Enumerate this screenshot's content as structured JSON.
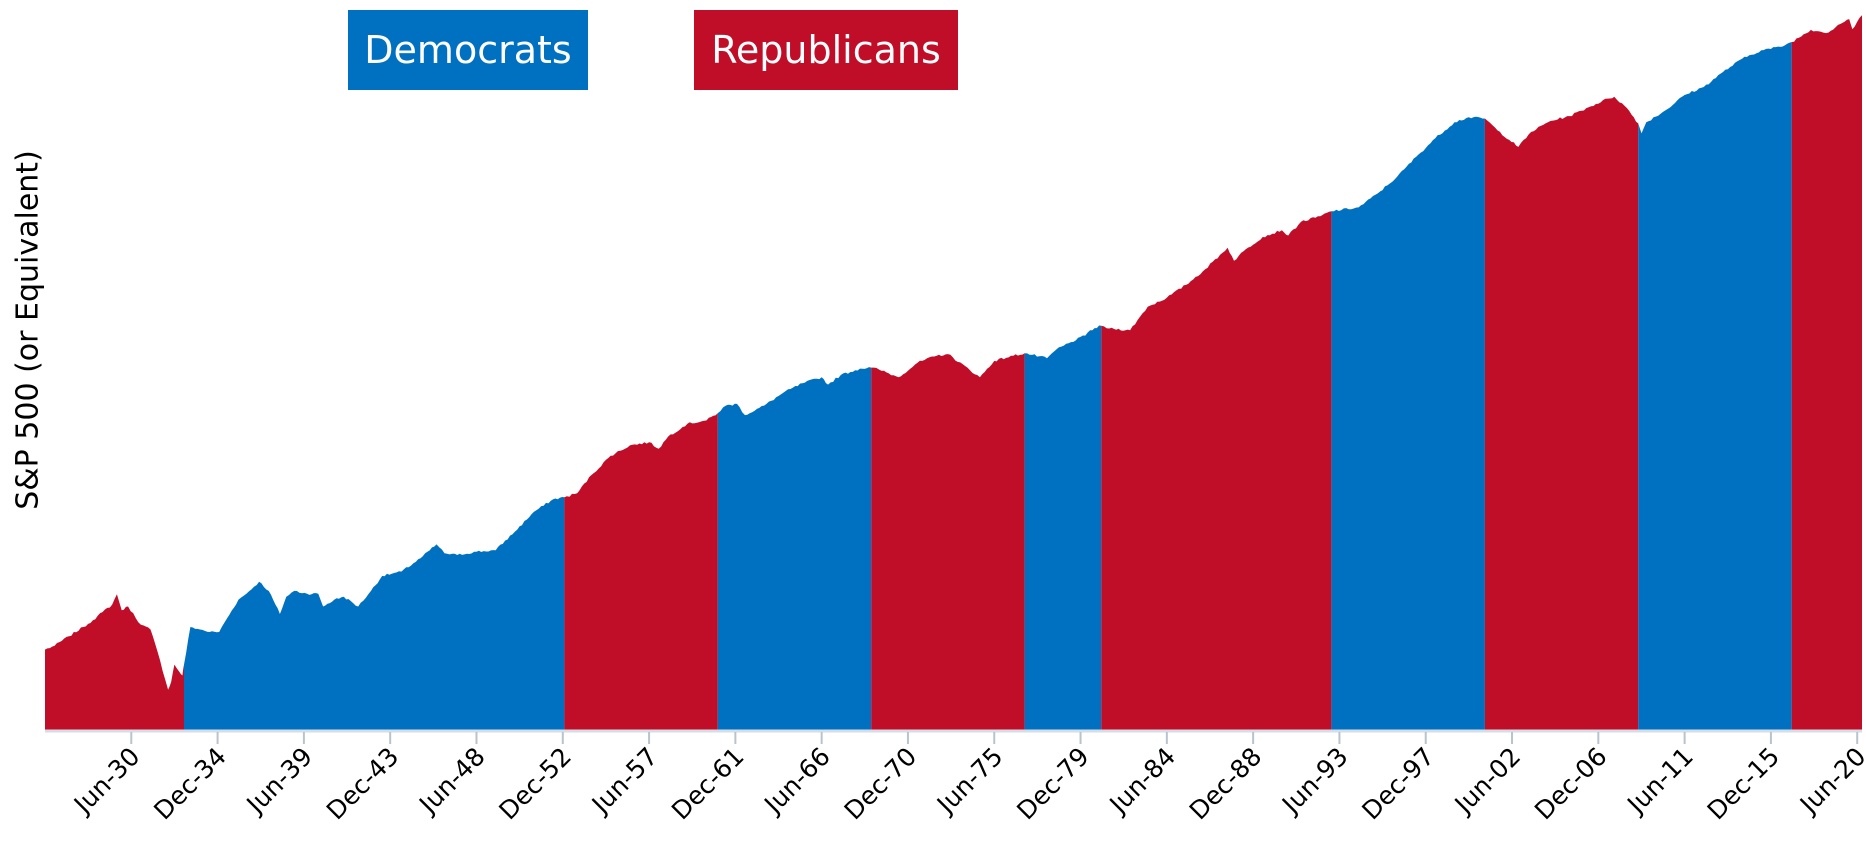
{
  "chart_data": {
    "type": "area",
    "title": "",
    "xlabel": "",
    "ylabel": "S&P 500 (or Equivalent)",
    "yscale": "log",
    "grid": false,
    "legend": [
      {
        "name": "Democrats",
        "color": "#0070c0"
      },
      {
        "name": "Republicans",
        "color": "#c00d28"
      }
    ],
    "x_tick_labels": [
      "Jun-30",
      "Dec-34",
      "Jun-39",
      "Dec-43",
      "Jun-48",
      "Dec-52",
      "Jun-57",
      "Dec-61",
      "Jun-66",
      "Dec-70",
      "Jun-75",
      "Dec-79",
      "Jun-84",
      "Dec-88",
      "Jun-93",
      "Dec-97",
      "Jun-02",
      "Dec-06",
      "Jun-11",
      "Dec-15",
      "Jun-20"
    ],
    "x_range": [
      "1925-12",
      "2020-09"
    ],
    "presidential_terms": [
      {
        "party": "Republicans",
        "start": "1925-12",
        "end": "1933-03"
      },
      {
        "party": "Democrats",
        "start": "1933-03",
        "end": "1953-01"
      },
      {
        "party": "Republicans",
        "start": "1953-01",
        "end": "1961-01"
      },
      {
        "party": "Democrats",
        "start": "1961-01",
        "end": "1969-01"
      },
      {
        "party": "Republicans",
        "start": "1969-01",
        "end": "1977-01"
      },
      {
        "party": "Democrats",
        "start": "1977-01",
        "end": "1981-01"
      },
      {
        "party": "Republicans",
        "start": "1981-01",
        "end": "1993-01"
      },
      {
        "party": "Democrats",
        "start": "1993-01",
        "end": "2001-01"
      },
      {
        "party": "Republicans",
        "start": "2001-01",
        "end": "2009-01"
      },
      {
        "party": "Democrats",
        "start": "2009-01",
        "end": "2017-01"
      },
      {
        "party": "Republicans",
        "start": "2017-01",
        "end": "2020-09"
      }
    ],
    "series": [
      {
        "x": [
          "1925-12",
          "1926-06",
          "1927-03",
          "1927-12",
          "1928-06",
          "1928-12",
          "1929-06",
          "1929-09",
          "1929-12",
          "1930-04",
          "1930-12",
          "1931-06",
          "1931-12",
          "1932-05",
          "1932-07",
          "1932-09",
          "1932-12",
          "1933-02",
          "1933-03",
          "1933-07",
          "1934-01",
          "1934-07",
          "1935-01",
          "1935-06",
          "1936-01",
          "1936-06",
          "1937-02",
          "1937-08",
          "1938-03",
          "1938-07",
          "1938-12",
          "1939-08",
          "1940-03",
          "1940-06",
          "1941-01",
          "1941-07",
          "1942-04",
          "1942-12",
          "1943-07",
          "1944-01",
          "1944-07",
          "1945-07",
          "1946-05",
          "1946-10",
          "1947-06",
          "1948-06",
          "1949-06",
          "1950-06",
          "1951-06",
          "1952-06",
          "1953-01",
          "1953-09",
          "1954-06",
          "1955-06",
          "1956-06",
          "1957-06",
          "1957-12",
          "1958-06",
          "1959-06",
          "1960-06",
          "1961-01",
          "1961-06",
          "1962-01",
          "1962-06",
          "1963-06",
          "1964-06",
          "1965-06",
          "1966-06",
          "1966-10",
          "1967-06",
          "1968-06",
          "1969-01",
          "1969-06",
          "1970-06",
          "1971-06",
          "1972-06",
          "1973-01",
          "1974-09",
          "1975-06",
          "1976-06",
          "1977-01",
          "1978-03",
          "1978-09",
          "1979-06",
          "1980-03",
          "1980-06",
          "1981-01",
          "1981-06",
          "1982-07",
          "1983-06",
          "1984-06",
          "1985-06",
          "1986-06",
          "1987-08",
          "1987-12",
          "1988-06",
          "1989-06",
          "1990-06",
          "1990-10",
          "1991-06",
          "1992-06",
          "1993-01",
          "1994-06",
          "1995-06",
          "1996-06",
          "1997-06",
          "1998-06",
          "1999-06",
          "2000-03",
          "2001-01",
          "2001-09",
          "2002-10",
          "2003-06",
          "2004-06",
          "2005-06",
          "2006-06",
          "2007-06",
          "2007-10",
          "2008-06",
          "2009-01",
          "2009-03",
          "2009-06",
          "2010-06",
          "2011-06",
          "2012-06",
          "2013-06",
          "2014-06",
          "2015-06",
          "2016-06",
          "2017-01",
          "2018-01",
          "2018-12",
          "2019-06",
          "2020-01",
          "2020-03",
          "2020-09"
        ],
        "values": [
          1.0,
          1.06,
          1.22,
          1.4,
          1.55,
          1.75,
          1.95,
          2.28,
          1.8,
          1.9,
          1.45,
          1.35,
          0.85,
          0.55,
          0.62,
          0.8,
          0.72,
          0.68,
          0.8,
          1.4,
          1.35,
          1.3,
          1.3,
          1.6,
          2.1,
          2.3,
          2.75,
          2.4,
          1.7,
          2.2,
          2.4,
          2.3,
          2.3,
          1.9,
          2.1,
          2.2,
          1.9,
          2.4,
          3.0,
          3.1,
          3.2,
          3.9,
          4.8,
          4.2,
          4.1,
          4.3,
          4.4,
          5.8,
          7.8,
          9.4,
          9.7,
          10.3,
          13.5,
          18.0,
          21.0,
          22.0,
          20.0,
          24.0,
          29.0,
          30.5,
          34.0,
          38.0,
          39.0,
          33.0,
          38.0,
          46.0,
          53.0,
          58.0,
          52.0,
          60.0,
          66.0,
          67.0,
          65.0,
          58.0,
          72.0,
          80.0,
          82.0,
          58.0,
          74.0,
          80.0,
          83.0,
          77.0,
          88.0,
          98.0,
          108.0,
          117.0,
          125.0,
          120.0,
          117.0,
          166.0,
          190.0,
          230.0,
          290.0,
          400.0,
          330.0,
          380.0,
          470.0,
          520.0,
          480.0,
          590.0,
          640.0,
          690.0,
          730.0,
          900.0,
          1150.0,
          1550.0,
          2050.0,
          2600.0,
          2800.0,
          2750.0,
          2300.0,
          1800.0,
          2250.0,
          2650.0,
          2850.0,
          3250.0,
          3700.0,
          3800.0,
          3200.0,
          2550.0,
          2200.0,
          2600.0,
          3100.0,
          3900.0,
          4400.0,
          5500.0,
          6700.0,
          7600.0,
          8000.0,
          8600.0,
          10300.0,
          9900.0,
          11100.0,
          12100.0,
          10400.0,
          12800.0
        ]
      }
    ]
  }
}
